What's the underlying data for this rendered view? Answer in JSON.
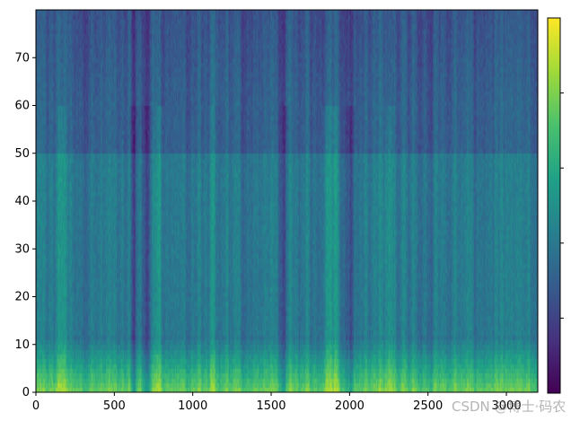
{
  "chart_data": {
    "type": "heatmap",
    "title": "",
    "xlabel": "",
    "ylabel": "",
    "xlim": [
      0,
      3200
    ],
    "ylim": [
      0,
      80
    ],
    "x_ticks": [
      0,
      500,
      1000,
      1500,
      2000,
      2500,
      3000
    ],
    "x_tick_labels": [
      "0",
      "500",
      "1000",
      "1500",
      "2000",
      "2500",
      "3000"
    ],
    "y_ticks": [
      0,
      10,
      20,
      30,
      40,
      50,
      60,
      70
    ],
    "y_tick_labels": [
      "0",
      "10",
      "20",
      "30",
      "40",
      "50",
      "60",
      "70"
    ],
    "colormap": "viridis",
    "colormap_stops": [
      "#440154",
      "#46327e",
      "#365c8d",
      "#277f8e",
      "#1fa187",
      "#4ac16d",
      "#a0da39",
      "#fde725"
    ],
    "colorbar": {
      "position": "right",
      "tick_fractions": [
        0.2,
        0.4,
        0.6,
        0.8
      ],
      "tick_labels": [
        "",
        "",
        "",
        ""
      ]
    },
    "grid": false,
    "low_rows_bright_band": {
      "y_range": [
        0,
        12
      ],
      "description_level": "high"
    },
    "vertical_streaks": [
      {
        "x": 160,
        "level": "high"
      },
      {
        "x": 620,
        "level": "low"
      },
      {
        "x": 700,
        "level": "low"
      },
      {
        "x": 780,
        "level": "high"
      },
      {
        "x": 1130,
        "level": "high"
      },
      {
        "x": 1140,
        "level": "low"
      },
      {
        "x": 1580,
        "level": "low"
      },
      {
        "x": 1850,
        "level": "high"
      },
      {
        "x": 1900,
        "level": "high"
      },
      {
        "x": 2000,
        "level": "low"
      },
      {
        "x": 2250,
        "level": "high"
      }
    ]
  },
  "watermark": {
    "text": "CSDN @博士·码农"
  }
}
